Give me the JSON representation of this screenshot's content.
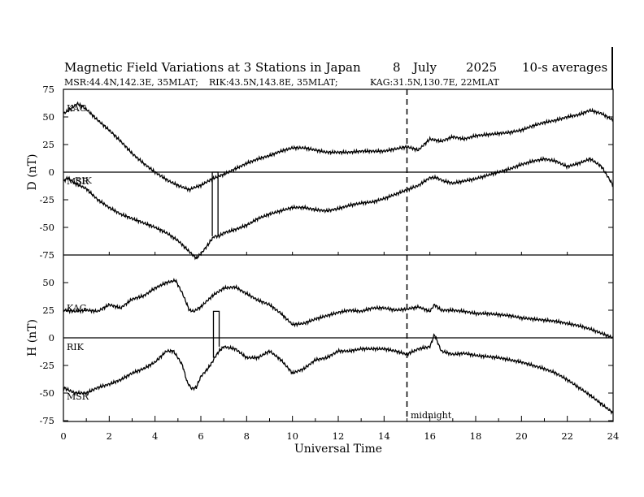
{
  "chart_data": {
    "type": "line",
    "title": "Magnetic Field Variations at 3 Stations in Japan",
    "date_day": "8",
    "date_month": "July",
    "date_year": "2025",
    "averaging": "10-s averages",
    "stations_info": {
      "msr": "MSR:44.4N,142.3E, 35MLAT;",
      "rik": "RIK:43.5N,143.8E, 35MLAT;",
      "kag": "KAG:31.5N,130.7E, 22MLAT"
    },
    "xlabel": "Universal Time",
    "xlim": [
      0,
      24
    ],
    "xticks": [
      "0",
      "2",
      "4",
      "6",
      "8",
      "10",
      "12",
      "14",
      "16",
      "18",
      "20",
      "22",
      "24"
    ],
    "midnight_ut": 15,
    "midnight_label": "midnight",
    "panels": [
      {
        "ylabel": "D (nT)",
        "ylim": [
          -75,
          75
        ],
        "yticks": [
          "75",
          "50",
          "25",
          "0",
          "-25",
          "-50",
          "-75"
        ],
        "series": [
          {
            "name": "KAG",
            "x": [
              0,
              0.3,
              0.6,
              0.8,
              1,
              1.5,
              2,
              2.5,
              3,
              3.5,
              4,
              4.3,
              4.6,
              5,
              5.5,
              5.7,
              6,
              6.5,
              7,
              7.5,
              8,
              8.5,
              9,
              9.5,
              10,
              10.5,
              11,
              11.5,
              12,
              12.5,
              13,
              13.5,
              14,
              14.5,
              15,
              15.5,
              16,
              16.5,
              17,
              17.5,
              18,
              18.5,
              19,
              19.5,
              20,
              20.5,
              21,
              21.5,
              22,
              22.5,
              23,
              23.5,
              24
            ],
            "values": [
              53,
              57,
              62,
              60,
              57,
              47,
              38,
              28,
              17,
              8,
              0,
              -4,
              -8,
              -12,
              -16,
              -14,
              -12,
              -6,
              -2,
              3,
              8,
              12,
              15,
              19,
              22,
              22,
              20,
              18,
              18,
              18,
              19,
              19,
              19,
              21,
              23,
              20,
              30,
              28,
              32,
              30,
              33,
              34,
              35,
              36,
              38,
              42,
              45,
              47,
              50,
              52,
              56,
              53,
              47
            ]
          },
          {
            "name": "MSR",
            "x": [
              0,
              0.2,
              0.5,
              1,
              1.5,
              2,
              2.5,
              3,
              3.5,
              4,
              4.5,
              5,
              5.5,
              5.8,
              6,
              6.3,
              6.5,
              6.6,
              6.8,
              7,
              7.5,
              8,
              8.5,
              9,
              9.5,
              10,
              10.5,
              11,
              11.5,
              12,
              12.5,
              13,
              13.5,
              14,
              14.5,
              15,
              15.5,
              16,
              16.3,
              16.6,
              17,
              17.5,
              18,
              18.5,
              19,
              19.5,
              20,
              20.5,
              21,
              21.5,
              22,
              22.5,
              23,
              23.5,
              24
            ],
            "values": [
              -8,
              -5,
              -10,
              -15,
              -25,
              -32,
              -38,
              -42,
              -46,
              -50,
              -55,
              -62,
              -72,
              -78,
              -74,
              -66,
              -60,
              -58,
              -58,
              -55,
              -52,
              -48,
              -42,
              -38,
              -35,
              -32,
              -32,
              -34,
              -35,
              -33,
              -30,
              -28,
              -27,
              -24,
              -20,
              -16,
              -12,
              -5,
              -5,
              -8,
              -10,
              -8,
              -6,
              -3,
              0,
              3,
              7,
              10,
              12,
              10,
              5,
              8,
              12,
              5,
              -12
            ]
          }
        ]
      },
      {
        "ylabel": "H (nT)",
        "ylim": [
          -75,
          75
        ],
        "yticks": [
          "75",
          "50",
          "25",
          "0",
          "-25",
          "-50",
          "-75"
        ],
        "series": [
          {
            "name": "KAG",
            "x": [
              0,
              0.5,
              1,
              1.5,
              2,
              2.5,
              3,
              3.5,
              4,
              4.5,
              4.9,
              5.2,
              5.5,
              5.7,
              6,
              6.5,
              7,
              7.5,
              8,
              8.5,
              9,
              9.5,
              10,
              10.5,
              11,
              11.5,
              12,
              12.5,
              13,
              13.5,
              14,
              14.5,
              15,
              15.5,
              16,
              16.2,
              16.5,
              17,
              17.5,
              18,
              18.5,
              19,
              19.5,
              20,
              20.5,
              21,
              21.5,
              22,
              22.5,
              23,
              23.5,
              24
            ],
            "values": [
              25,
              24,
              25,
              24,
              30,
              27,
              35,
              38,
              45,
              50,
              52,
              40,
              25,
              24,
              28,
              38,
              45,
              46,
              40,
              34,
              30,
              22,
              12,
              13,
              17,
              20,
              23,
              25,
              24,
              27,
              27,
              25,
              26,
              28,
              24,
              30,
              25,
              25,
              24,
              22,
              22,
              21,
              20,
              18,
              17,
              16,
              15,
              13,
              11,
              8,
              4,
              0
            ]
          },
          {
            "name": "MSR",
            "x": [
              0,
              0.5,
              1,
              1.5,
              2,
              2.5,
              3,
              3.5,
              4,
              4.5,
              4.8,
              5,
              5.2,
              5.4,
              5.6,
              5.8,
              6,
              6.3,
              6.5,
              6.6,
              6.8,
              7,
              7.5,
              8,
              8.5,
              9,
              9.5,
              10,
              10.5,
              11,
              11.5,
              12,
              12.5,
              13,
              13.5,
              14,
              14.5,
              15,
              15.5,
              16,
              16.2,
              16.5,
              17,
              17.5,
              18,
              18.5,
              19,
              19.5,
              20,
              20.5,
              21,
              21.5,
              22,
              22.5,
              23,
              23.5,
              24
            ],
            "values": [
              -45,
              -50,
              -50,
              -45,
              -42,
              -38,
              -32,
              -28,
              -22,
              -12,
              -12,
              -18,
              -25,
              -40,
              -46,
              -45,
              -35,
              -28,
              -22,
              -18,
              -12,
              -8,
              -10,
              -18,
              -18,
              -12,
              -20,
              -32,
              -28,
              -20,
              -18,
              -12,
              -12,
              -10,
              -10,
              -10,
              -12,
              -15,
              -10,
              -8,
              3,
              -12,
              -15,
              -14,
              -16,
              -17,
              -18,
              -20,
              -22,
              -25,
              -28,
              -32,
              -38,
              -45,
              -52,
              -60,
              -68
            ]
          }
        ]
      }
    ],
    "station_labels": {
      "top_kag": "KAG",
      "top_msr": "MSR",
      "top_rik": "RIK",
      "bottom_kag": "KAG",
      "bottom_rik": "RIK",
      "bottom_msr": "MSR"
    }
  }
}
